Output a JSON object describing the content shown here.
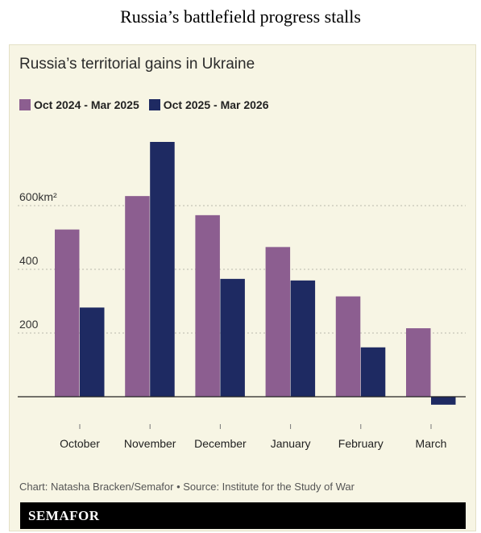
{
  "headline": "Russia’s battlefield progress stalls",
  "credit": "Chart: Natasha Bracken/Semafor • Source: Institute for the Study of War",
  "brand": "SEMAFOR",
  "colors": {
    "series1": "#8c5e90",
    "series2": "#1e2a62",
    "background": "#f7f5e4"
  },
  "chart_data": {
    "type": "bar",
    "title": "Russia’s territorial gains in Ukraine",
    "categories": [
      "October",
      "November",
      "December",
      "January",
      "February",
      "March"
    ],
    "series": [
      {
        "name": "Oct 2024 - Mar 2025",
        "values": [
          525,
          630,
          570,
          470,
          315,
          215
        ]
      },
      {
        "name": "Oct 2025 - Mar 2026",
        "values": [
          280,
          800,
          370,
          365,
          155,
          -25
        ]
      }
    ],
    "yticks": [
      "200",
      "400",
      "600km²"
    ],
    "ytick_values": [
      200,
      400,
      600
    ],
    "ylim": [
      -50,
      820
    ],
    "grid": true,
    "legend_position": "top-left"
  }
}
